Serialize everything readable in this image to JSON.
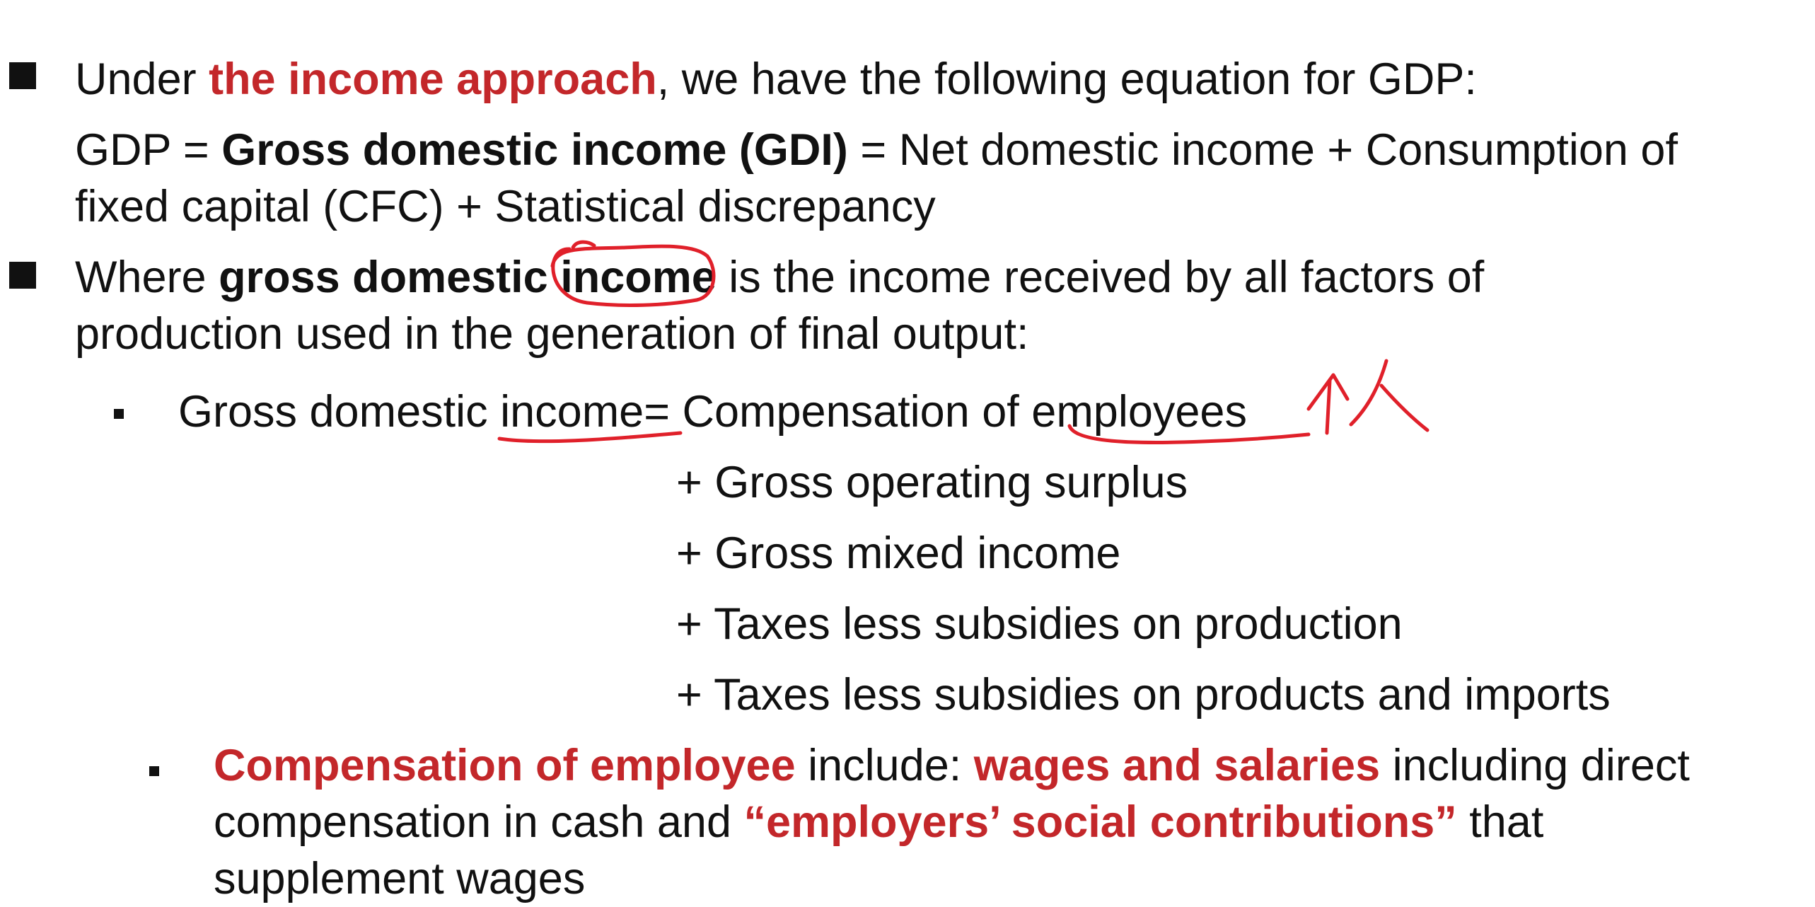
{
  "bullet1": {
    "pre": "Under ",
    "highlight": "the income approach",
    "post": ", we have the following equation for GDP:"
  },
  "equation": {
    "line1_pre": "GDP = ",
    "line1_bold": "Gross domestic income (GDI)",
    "line1_post": " = Net domestic income + Consumption of",
    "line2": "fixed capital (CFC) + Statistical discrepancy"
  },
  "bullet2": {
    "pre": "Where ",
    "bold": "gross domestic income",
    "post": " is the income received by all factors of",
    "line2": "production used in the generation of final output:"
  },
  "gdi_formula": {
    "lhs": "Gross domestic income= Compensation of employees",
    "terms": [
      "+ Gross operating surplus",
      "+ Gross mixed income",
      "+ Taxes less subsidies on production",
      "+ Taxes less subsidies on products and imports"
    ]
  },
  "compensation": {
    "highlight": "Compensation of employee",
    "mid": " include:  ",
    "highlight2": "wages and salaries",
    "post": " including direct",
    "line2_pre": "compensation in cash and ",
    "line2_highlight": "“employers’ social contributions”",
    "line2_post": " that",
    "line3": "supplement wages"
  },
  "colors": {
    "accent": "#c3272a",
    "ink": "#e0202a",
    "text": "#111111"
  }
}
